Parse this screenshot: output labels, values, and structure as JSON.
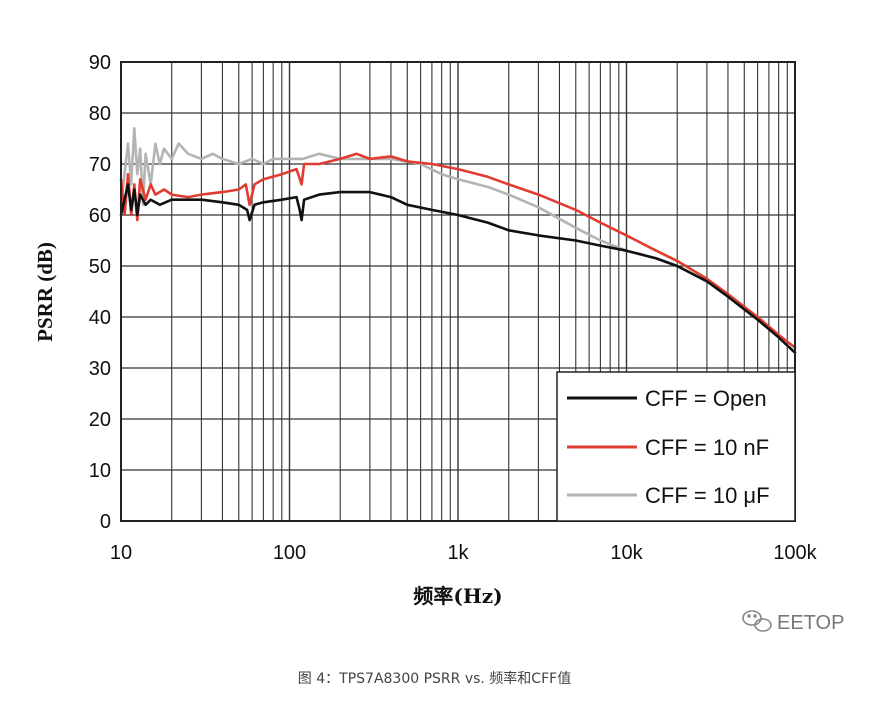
{
  "caption": "图 4：TPS7A8300 PSRR vs. 频率和CFF值",
  "watermark": {
    "text": "EETOP",
    "icon": "wechat-icon",
    "color": "#777777"
  },
  "chart_data": {
    "type": "line",
    "title": "",
    "xlabel": "频率(Hz)",
    "ylabel": "PSRR (dB)",
    "x_scale": "log",
    "xlim": [
      10,
      100000
    ],
    "ylim": [
      0,
      90
    ],
    "grid": true,
    "x_ticks": [
      {
        "value": 10,
        "label": "10"
      },
      {
        "value": 100,
        "label": "100"
      },
      {
        "value": 1000,
        "label": "1k"
      },
      {
        "value": 10000,
        "label": "10k"
      },
      {
        "value": 100000,
        "label": "100k"
      }
    ],
    "y_ticks": [
      0,
      10,
      20,
      30,
      40,
      50,
      60,
      70,
      80,
      90
    ],
    "legend_position": "bottom-right",
    "series": [
      {
        "name": "CFF = 10 μF",
        "color": "#b4b4b4",
        "points": [
          [
            10,
            62
          ],
          [
            11,
            74
          ],
          [
            11.5,
            66
          ],
          [
            12,
            77
          ],
          [
            12.5,
            68
          ],
          [
            13,
            73
          ],
          [
            13.5,
            62
          ],
          [
            14,
            72
          ],
          [
            15,
            66
          ],
          [
            16,
            74
          ],
          [
            17,
            70
          ],
          [
            18,
            73
          ],
          [
            20,
            71
          ],
          [
            22,
            74
          ],
          [
            25,
            72
          ],
          [
            30,
            71
          ],
          [
            35,
            72
          ],
          [
            40,
            71
          ],
          [
            50,
            70
          ],
          [
            60,
            71
          ],
          [
            70,
            70
          ],
          [
            80,
            71
          ],
          [
            100,
            71
          ],
          [
            120,
            71
          ],
          [
            150,
            72
          ],
          [
            200,
            71
          ],
          [
            300,
            71
          ],
          [
            400,
            71
          ],
          [
            600,
            70
          ],
          [
            800,
            68
          ],
          [
            1000,
            67
          ],
          [
            1500,
            65.5
          ],
          [
            2000,
            64
          ],
          [
            3000,
            61.5
          ],
          [
            5000,
            57.5
          ],
          [
            7000,
            55
          ],
          [
            10000,
            53
          ],
          [
            15000,
            51.5
          ],
          [
            20000,
            50
          ],
          [
            30000,
            47
          ],
          [
            40000,
            44
          ],
          [
            50000,
            41.5
          ],
          [
            60000,
            39.5
          ],
          [
            80000,
            36
          ],
          [
            100000,
            33
          ]
        ]
      },
      {
        "name": "CFF = 10 nF",
        "color": "#e03c31",
        "points": [
          [
            10,
            67
          ],
          [
            10.5,
            60
          ],
          [
            11,
            68
          ],
          [
            11.5,
            60
          ],
          [
            12,
            66
          ],
          [
            12.5,
            59
          ],
          [
            13,
            67
          ],
          [
            14,
            63
          ],
          [
            15,
            66
          ],
          [
            16,
            64
          ],
          [
            18,
            65
          ],
          [
            20,
            64
          ],
          [
            25,
            63.5
          ],
          [
            30,
            64
          ],
          [
            40,
            64.5
          ],
          [
            50,
            65
          ],
          [
            55,
            66
          ],
          [
            58,
            62
          ],
          [
            62,
            66
          ],
          [
            70,
            67
          ],
          [
            90,
            68
          ],
          [
            110,
            69
          ],
          [
            118,
            66
          ],
          [
            122,
            70
          ],
          [
            150,
            70
          ],
          [
            200,
            71
          ],
          [
            250,
            72
          ],
          [
            300,
            71
          ],
          [
            400,
            71.5
          ],
          [
            500,
            70.5
          ],
          [
            700,
            70
          ],
          [
            1000,
            69
          ],
          [
            1500,
            67.5
          ],
          [
            2000,
            66
          ],
          [
            3000,
            64
          ],
          [
            5000,
            61
          ],
          [
            7000,
            58.5
          ],
          [
            10000,
            56
          ],
          [
            15000,
            53
          ],
          [
            20000,
            51
          ],
          [
            30000,
            47.5
          ],
          [
            40000,
            44.5
          ],
          [
            50000,
            42
          ],
          [
            60000,
            40
          ],
          [
            80000,
            36.5
          ],
          [
            100000,
            34
          ]
        ]
      },
      {
        "name": "CFF = Open",
        "color": "#111111",
        "points": [
          [
            10,
            60
          ],
          [
            11,
            66
          ],
          [
            11.5,
            61
          ],
          [
            12,
            65
          ],
          [
            12.5,
            60
          ],
          [
            13,
            64
          ],
          [
            14,
            62
          ],
          [
            15,
            63
          ],
          [
            17,
            62
          ],
          [
            20,
            63
          ],
          [
            25,
            63
          ],
          [
            30,
            63
          ],
          [
            40,
            62.5
          ],
          [
            50,
            62
          ],
          [
            56,
            61
          ],
          [
            58,
            59
          ],
          [
            62,
            62
          ],
          [
            70,
            62.5
          ],
          [
            90,
            63
          ],
          [
            110,
            63.5
          ],
          [
            115,
            61
          ],
          [
            118,
            59
          ],
          [
            122,
            63
          ],
          [
            150,
            64
          ],
          [
            200,
            64.5
          ],
          [
            300,
            64.5
          ],
          [
            400,
            63.5
          ],
          [
            500,
            62
          ],
          [
            700,
            61
          ],
          [
            1000,
            60
          ],
          [
            1500,
            58.5
          ],
          [
            2000,
            57
          ],
          [
            3000,
            56
          ],
          [
            5000,
            55
          ],
          [
            7000,
            54
          ],
          [
            10000,
            53
          ],
          [
            15000,
            51.5
          ],
          [
            20000,
            50
          ],
          [
            30000,
            47
          ],
          [
            40000,
            44
          ],
          [
            50000,
            41.5
          ],
          [
            60000,
            39.5
          ],
          [
            80000,
            36
          ],
          [
            100000,
            33
          ]
        ]
      }
    ],
    "legend_order": [
      "CFF = Open",
      "CFF = 10 nF",
      "CFF = 10 μF"
    ]
  }
}
